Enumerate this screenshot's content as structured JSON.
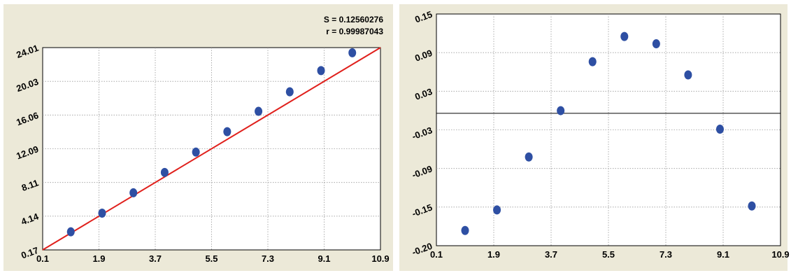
{
  "stats": {
    "s_text": "S = 0.12560276",
    "r_text": "r = 0.99987043"
  },
  "chart_data": [
    {
      "type": "scatter",
      "title": "",
      "xlabel": "",
      "ylabel": "",
      "x_ticks": [
        "0.1",
        "1.9",
        "3.7",
        "5.5",
        "7.3",
        "9.1",
        "10.9"
      ],
      "y_ticks": [
        "0.17",
        "4.14",
        "8.11",
        "12.09",
        "16.06",
        "20.03",
        "24.01"
      ],
      "xlim": [
        0.1,
        10.9
      ],
      "ylim": [
        0.17,
        24.01
      ],
      "grid": true,
      "series": [
        {
          "x": [
            1,
            2,
            3,
            4,
            5,
            6,
            7,
            8,
            9,
            10
          ],
          "y": [
            2.3,
            4.5,
            6.9,
            9.3,
            11.7,
            14.1,
            16.5,
            18.8,
            21.3,
            23.4
          ]
        }
      ],
      "fit_line": {
        "x": [
          0.1,
          10.9
        ],
        "y": [
          0.17,
          24.01
        ],
        "color": "#e0201c"
      },
      "marker_color": "#2e4fa3"
    },
    {
      "type": "scatter",
      "title": "",
      "xlabel": "",
      "ylabel": "",
      "x_ticks": [
        "0.1",
        "1.9",
        "3.7",
        "5.5",
        "7.3",
        "9.1",
        "10.9"
      ],
      "y_ticks": [
        "-0.20",
        "-0.15",
        "-0.09",
        "-0.03",
        "0.03",
        "0.09",
        "0.15"
      ],
      "xlim": [
        0.1,
        10.9
      ],
      "ylim": [
        -0.2,
        0.15
      ],
      "grid": true,
      "zero_line": 0,
      "series": [
        {
          "x": [
            1,
            2,
            3,
            4,
            5,
            6,
            7,
            8,
            9,
            10
          ],
          "y": [
            -0.177,
            -0.146,
            -0.066,
            0.004,
            0.078,
            0.116,
            0.105,
            0.058,
            -0.024,
            -0.14
          ]
        }
      ],
      "marker_color": "#2e4fa3"
    }
  ]
}
